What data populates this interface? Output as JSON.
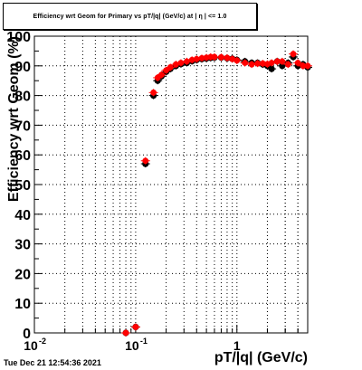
{
  "chart_data": {
    "type": "scatter",
    "title": "Efficiency wrt Geom for Primary vs pT/|q| (GeV/c) at | η | <= 1.0",
    "xlabel": "pT/|q| (GeV/c)",
    "ylabel": "Efficiency wrt  Geom (%)",
    "x_scale": "log",
    "xlim": [
      0.01,
      5.0
    ],
    "ylim": [
      0,
      100
    ],
    "x_tick_labels": [
      "10",
      "-2",
      "10",
      "-1",
      "1"
    ],
    "y_tick_labels": [
      "0",
      "10",
      "20",
      "30",
      "40",
      "50",
      "60",
      "70",
      "80",
      "90",
      "100"
    ],
    "grid": true,
    "series": [
      {
        "color": "#000000",
        "points": [
          [
            0.08,
            0.0
          ],
          [
            0.1,
            2.0
          ],
          [
            0.125,
            57.0
          ],
          [
            0.15,
            80.0
          ],
          [
            0.165,
            85.0
          ],
          [
            0.18,
            86.5
          ],
          [
            0.2,
            88.0
          ],
          [
            0.22,
            89.0
          ],
          [
            0.25,
            90.0
          ],
          [
            0.28,
            90.6
          ],
          [
            0.32,
            91.0
          ],
          [
            0.36,
            91.6
          ],
          [
            0.4,
            92.0
          ],
          [
            0.45,
            92.3
          ],
          [
            0.5,
            92.5
          ],
          [
            0.55,
            92.7
          ],
          [
            0.6,
            92.8
          ],
          [
            0.7,
            92.8
          ],
          [
            0.8,
            92.6
          ],
          [
            0.9,
            92.4
          ],
          [
            1.0,
            92.0
          ],
          [
            1.2,
            91.5
          ],
          [
            1.4,
            91.0
          ],
          [
            1.6,
            91.0
          ],
          [
            1.8,
            90.5
          ],
          [
            2.0,
            90.0
          ],
          [
            2.2,
            89.0
          ],
          [
            2.5,
            91.5
          ],
          [
            2.8,
            90.0
          ],
          [
            3.2,
            91.0
          ],
          [
            3.6,
            93.0
          ],
          [
            4.0,
            90.0
          ],
          [
            4.5,
            90.5
          ],
          [
            5.0,
            89.5
          ]
        ]
      },
      {
        "color": "#ff0000",
        "points": [
          [
            0.08,
            0.0
          ],
          [
            0.1,
            2.0
          ],
          [
            0.125,
            58.0
          ],
          [
            0.15,
            81.0
          ],
          [
            0.165,
            86.0
          ],
          [
            0.18,
            87.0
          ],
          [
            0.2,
            88.5
          ],
          [
            0.22,
            89.5
          ],
          [
            0.25,
            90.5
          ],
          [
            0.28,
            91.0
          ],
          [
            0.32,
            91.5
          ],
          [
            0.36,
            92.0
          ],
          [
            0.4,
            92.3
          ],
          [
            0.45,
            92.6
          ],
          [
            0.5,
            92.8
          ],
          [
            0.55,
            93.0
          ],
          [
            0.6,
            93.0
          ],
          [
            0.7,
            92.9
          ],
          [
            0.8,
            92.7
          ],
          [
            0.9,
            92.3
          ],
          [
            1.0,
            91.8
          ],
          [
            1.2,
            91.0
          ],
          [
            1.4,
            90.5
          ],
          [
            1.6,
            90.8
          ],
          [
            1.8,
            90.8
          ],
          [
            2.0,
            90.6
          ],
          [
            2.2,
            91.0
          ],
          [
            2.5,
            91.5
          ],
          [
            2.8,
            91.5
          ],
          [
            3.2,
            90.5
          ],
          [
            3.6,
            94.0
          ],
          [
            4.0,
            91.0
          ],
          [
            4.5,
            90.0
          ],
          [
            5.0,
            90.0
          ]
        ]
      }
    ],
    "timestamp": "Tue Dec 21 12:54:36 2021"
  }
}
